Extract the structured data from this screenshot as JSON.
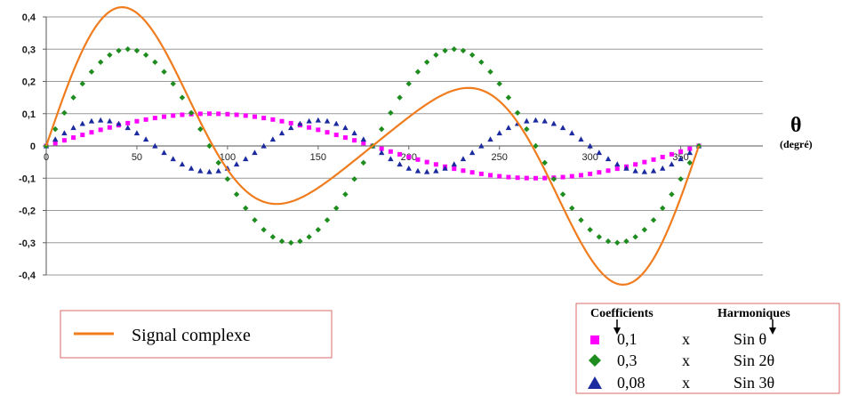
{
  "chart_data": {
    "type": "line",
    "xlabel": "θ",
    "xlabel_unit": "(degré)",
    "ylabel": "",
    "xlim": [
      0,
      360
    ],
    "ylim": [
      -0.4,
      0.4
    ],
    "x_ticks": [
      "0",
      "50",
      "100",
      "150",
      "200",
      "250",
      "300",
      "350"
    ],
    "y_ticks": [
      "0,4",
      "0,3",
      "0,2",
      "0,1",
      "0",
      "-0,1",
      "-0,2",
      "-0,3",
      "-0,4"
    ],
    "grid": "horizontal",
    "x_step_degrees": 5,
    "series": [
      {
        "name": "Signal complexe",
        "style": "solid-line",
        "color": "#f07c1e",
        "formula": "0,1 sin θ + 0,3 sin 2θ + 0,08 sin 3θ"
      },
      {
        "name": "0,1 x Sin θ",
        "style": "square-markers",
        "color": "#ff00ff",
        "coefficient": 0.1,
        "harmonic": 1
      },
      {
        "name": "0,3 x Sin 2θ",
        "style": "diamond-markers",
        "color": "#1e8c1e",
        "coefficient": 0.3,
        "harmonic": 2
      },
      {
        "name": "0,08 x Sin 3θ",
        "style": "triangle-markers",
        "color": "#1c2aa0",
        "coefficient": 0.08,
        "harmonic": 3
      }
    ]
  },
  "legend_signal": {
    "label": "Signal complexe"
  },
  "legend_harmonics": {
    "header_coefficients": "Coefficients",
    "header_harmonics": "Harmoniques",
    "rows": [
      {
        "coef": "0,1",
        "times": "x",
        "harmonic": "Sin θ"
      },
      {
        "coef": "0,3",
        "times": "x",
        "harmonic": "Sin 2θ"
      },
      {
        "coef": "0,08",
        "times": "x",
        "harmonic": "Sin 3θ"
      }
    ]
  }
}
